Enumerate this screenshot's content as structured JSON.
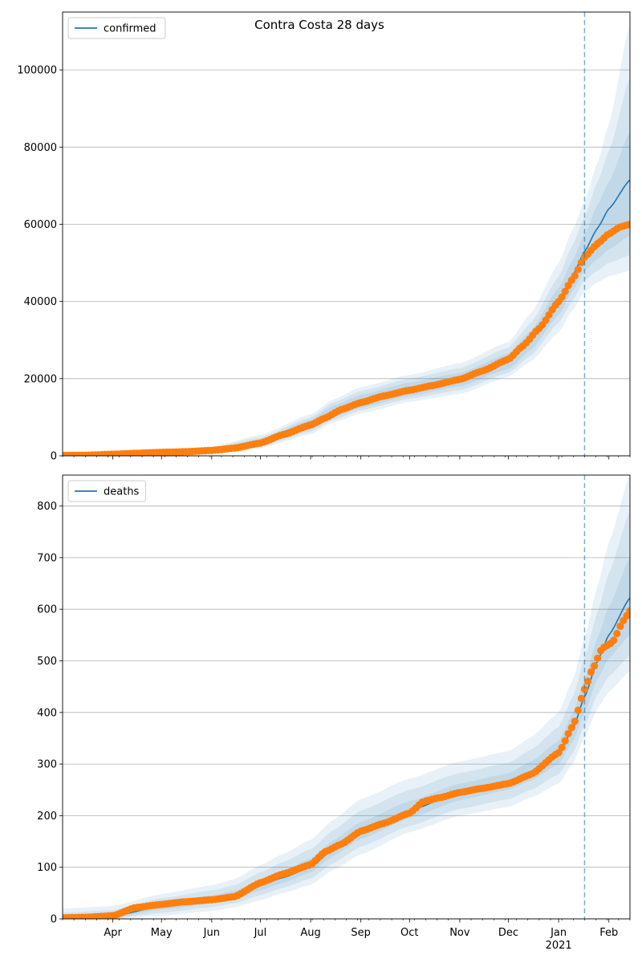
{
  "suptitle": "Contra Costa 28 days",
  "colors": {
    "model_line": "#1f77b4",
    "observed_points": "#ff7f0e",
    "band": "#1f77b4",
    "vline": "#1f77b4",
    "grid": "#b0b0b0"
  },
  "x_axis": {
    "start_date": "2020-03-01",
    "end_date": "2021-02-14",
    "month_ticks": [
      {
        "date": "2020-04-01",
        "label": "Apr"
      },
      {
        "date": "2020-05-01",
        "label": "May"
      },
      {
        "date": "2020-06-01",
        "label": "Jun"
      },
      {
        "date": "2020-07-01",
        "label": "Jul"
      },
      {
        "date": "2020-08-01",
        "label": "Aug"
      },
      {
        "date": "2020-09-01",
        "label": "Sep"
      },
      {
        "date": "2020-10-01",
        "label": "Oct"
      },
      {
        "date": "2020-11-01",
        "label": "Nov"
      },
      {
        "date": "2020-12-01",
        "label": "Dec"
      },
      {
        "date": "2021-01-01",
        "label": "Jan"
      },
      {
        "date": "2021-02-01",
        "label": "Feb"
      }
    ],
    "year_label": {
      "date": "2021-01-01",
      "label": "2021"
    },
    "forecast_start": "2021-01-17"
  },
  "chart_data": [
    {
      "type": "line",
      "legend": "confirmed",
      "legend_position": "upper-left",
      "ylim": [
        0,
        115000
      ],
      "yticks": [
        0,
        20000,
        40000,
        60000,
        80000,
        100000
      ],
      "grid": true,
      "model": {
        "dates": [
          "2020-03-01",
          "2020-04-01",
          "2020-05-01",
          "2020-06-01",
          "2020-07-01",
          "2020-08-01",
          "2020-08-15",
          "2020-09-01",
          "2020-10-01",
          "2020-11-01",
          "2020-12-01",
          "2020-12-15",
          "2021-01-01",
          "2021-01-10",
          "2021-01-17",
          "2021-01-25",
          "2021-02-01",
          "2021-02-14"
        ],
        "median": [
          0,
          300,
          800,
          1400,
          3500,
          8000,
          11500,
          14000,
          17000,
          19700,
          24500,
          30000,
          40000,
          47000,
          53000,
          59000,
          64000,
          71500
        ],
        "bands": [
          {
            "lower": [
              0,
              200,
              600,
              1100,
              2800,
              6800,
              10000,
              12500,
              15500,
              18000,
              22500,
              27500,
              36500,
              43000,
              48000,
              51000,
              53500,
              57000
            ],
            "upper": [
              300,
              500,
              1100,
              1800,
              4300,
              9400,
              13000,
              15800,
              19000,
              21500,
              26500,
              32500,
              43500,
              51000,
              57500,
              65000,
              71000,
              84000
            ]
          },
          {
            "lower": [
              0,
              150,
              500,
              900,
              2400,
              6200,
              9300,
              11800,
              14800,
              17000,
              21500,
              26000,
              34500,
              40500,
              45500,
              48000,
              50000,
              52000
            ],
            "upper": [
              500,
              650,
              1300,
              2100,
              4800,
              10000,
              13800,
              16800,
              20000,
              22700,
              28000,
              34500,
              46500,
              55000,
              62000,
              71000,
              79000,
              98000
            ]
          },
          {
            "lower": [
              0,
              100,
              400,
              700,
              2000,
              5600,
              8600,
              11000,
              14000,
              16000,
              20500,
              24500,
              32000,
              38000,
              42500,
              45000,
              46500,
              48000
            ],
            "upper": [
              800,
              900,
              1600,
              2400,
              5400,
              10800,
              14600,
              17800,
              21000,
              24000,
              29500,
              37000,
              50000,
              59000,
              66000,
              76000,
              86000,
              112000
            ]
          }
        ]
      },
      "observed": {
        "dates": [
          "2020-03-01",
          "2020-03-15",
          "2020-04-01",
          "2020-04-15",
          "2020-05-01",
          "2020-05-15",
          "2020-06-01",
          "2020-06-15",
          "2020-07-01",
          "2020-07-15",
          "2020-08-01",
          "2020-08-10",
          "2020-08-20",
          "2020-09-01",
          "2020-09-15",
          "2020-10-01",
          "2020-10-15",
          "2020-11-01",
          "2020-11-15",
          "2020-12-01",
          "2020-12-10",
          "2020-12-20",
          "2021-01-01",
          "2021-01-10",
          "2021-01-17",
          "2021-01-25",
          "2021-02-01",
          "2021-02-08",
          "2021-02-14"
        ],
        "values": [
          100,
          150,
          400,
          650,
          900,
          1050,
          1400,
          2000,
          3300,
          5500,
          8000,
          9800,
          12000,
          13800,
          15500,
          17000,
          18200,
          19800,
          22000,
          25000,
          28500,
          33000,
          40000,
          46000,
          51500,
          55000,
          57500,
          59300,
          60000
        ]
      }
    },
    {
      "type": "line",
      "legend": "deaths",
      "legend_position": "upper-left",
      "ylim": [
        0,
        860
      ],
      "yticks": [
        0,
        100,
        200,
        300,
        400,
        500,
        600,
        700,
        800
      ],
      "grid": true,
      "model": {
        "dates": [
          "2020-03-01",
          "2020-04-01",
          "2020-05-01",
          "2020-06-01",
          "2020-06-15",
          "2020-07-01",
          "2020-07-15",
          "2020-08-01",
          "2020-08-15",
          "2020-09-01",
          "2020-10-01",
          "2020-11-01",
          "2020-12-01",
          "2020-12-15",
          "2021-01-01",
          "2021-01-10",
          "2021-01-17",
          "2021-01-25",
          "2021-02-01",
          "2021-02-14"
        ],
        "median": [
          0,
          5,
          25,
          37,
          45,
          65,
          80,
          100,
          135,
          170,
          210,
          245,
          265,
          285,
          320,
          370,
          430,
          500,
          550,
          622
        ],
        "bands": [
          {
            "lower": [
              0,
              2,
              18,
              30,
              38,
              55,
              70,
              90,
              122,
              155,
              195,
              230,
              250,
              268,
              300,
              345,
              400,
              465,
              505,
              550
            ],
            "upper": [
              5,
              10,
              32,
              45,
              54,
              76,
              94,
              117,
              152,
              188,
              228,
              262,
              282,
              305,
              345,
              400,
              465,
              545,
              605,
              700
            ]
          },
          {
            "lower": [
              0,
              0,
              12,
              23,
              30,
              46,
              60,
              78,
              108,
              140,
              180,
              213,
              232,
              250,
              280,
              322,
              375,
              435,
              470,
              510
            ],
            "upper": [
              12,
              17,
              40,
              55,
              65,
              90,
              110,
              135,
              172,
              210,
              250,
              283,
              302,
              328,
              372,
              432,
              505,
              595,
              670,
              790
            ]
          },
          {
            "lower": [
              0,
              0,
              6,
              15,
              22,
              36,
              50,
              66,
              95,
              125,
              168,
              200,
              217,
              235,
              262,
              302,
              352,
              408,
              440,
              480
            ],
            "upper": [
              20,
              25,
              48,
              65,
              77,
              104,
              126,
              153,
              192,
              232,
              272,
              305,
              325,
              352,
              400,
              465,
              545,
              645,
              730,
              860
            ]
          }
        ]
      },
      "observed": {
        "dates": [
          "2020-03-01",
          "2020-03-15",
          "2020-04-01",
          "2020-04-15",
          "2020-05-01",
          "2020-05-15",
          "2020-06-01",
          "2020-06-15",
          "2020-07-01",
          "2020-07-15",
          "2020-08-01",
          "2020-08-10",
          "2020-08-20",
          "2020-09-01",
          "2020-09-15",
          "2020-10-01",
          "2020-10-10",
          "2020-10-20",
          "2020-11-01",
          "2020-11-15",
          "2020-12-01",
          "2020-12-15",
          "2021-01-01",
          "2021-01-10",
          "2021-01-17",
          "2021-01-22",
          "2021-01-28",
          "2021-02-03",
          "2021-02-10",
          "2021-02-14"
        ],
        "values": [
          2,
          3,
          6,
          22,
          28,
          33,
          37,
          43,
          70,
          87,
          105,
          130,
          145,
          170,
          185,
          205,
          228,
          235,
          245,
          253,
          262,
          280,
          322,
          375,
          445,
          485,
          525,
          535,
          578,
          597
        ]
      }
    }
  ]
}
